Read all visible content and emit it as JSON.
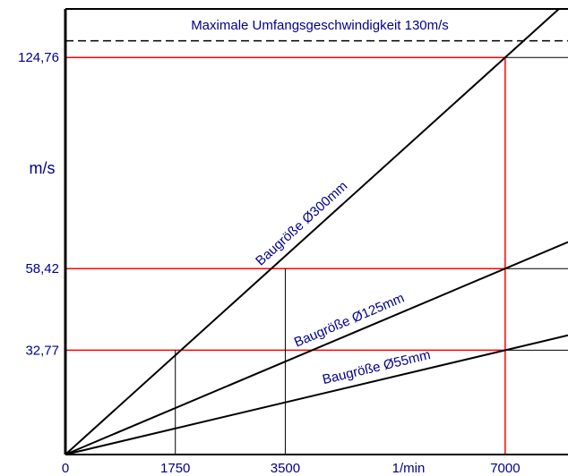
{
  "chart_data": {
    "type": "line",
    "title": "",
    "xlabel": "1/min",
    "ylabel": "m/s",
    "xlim": [
      0,
      8000
    ],
    "ylim": [
      0,
      140
    ],
    "grid": false,
    "x_tick_labels": [
      {
        "value": 0,
        "label": "0"
      },
      {
        "value": 1750,
        "label": "1750"
      },
      {
        "value": 3500,
        "label": "3500"
      },
      {
        "value": 7000,
        "label": "7000"
      }
    ],
    "y_tick_labels": [
      {
        "value": 32.77,
        "label": "32,77"
      },
      {
        "value": 58.42,
        "label": "58,42"
      },
      {
        "value": 124.76,
        "label": "124,76"
      }
    ],
    "series": [
      {
        "name": "Baugröße Ø300mm",
        "x": [
          0,
          7000
        ],
        "y": [
          0,
          124.76
        ]
      },
      {
        "name": "Baugröße Ø125mm",
        "x": [
          0,
          7000
        ],
        "y": [
          0,
          58.42
        ]
      },
      {
        "name": "Baugröße Ø55mm",
        "x": [
          0,
          7000
        ],
        "y": [
          0,
          32.77
        ]
      }
    ],
    "limit_line": {
      "value": 130,
      "label": "Maximale Umfangsgeschwindigkeit 130m/s"
    },
    "reference_points": [
      {
        "x": 1750,
        "y": 32.77
      },
      {
        "x": 3500,
        "y": 58.42
      },
      {
        "x": 7000,
        "y": 124.76
      },
      {
        "x": 7000,
        "y": 58.42
      },
      {
        "x": 7000,
        "y": 32.77
      }
    ],
    "colors": {
      "reference_line": "#ff0000",
      "series_line": "#000000",
      "label_text": "#00008b"
    }
  }
}
